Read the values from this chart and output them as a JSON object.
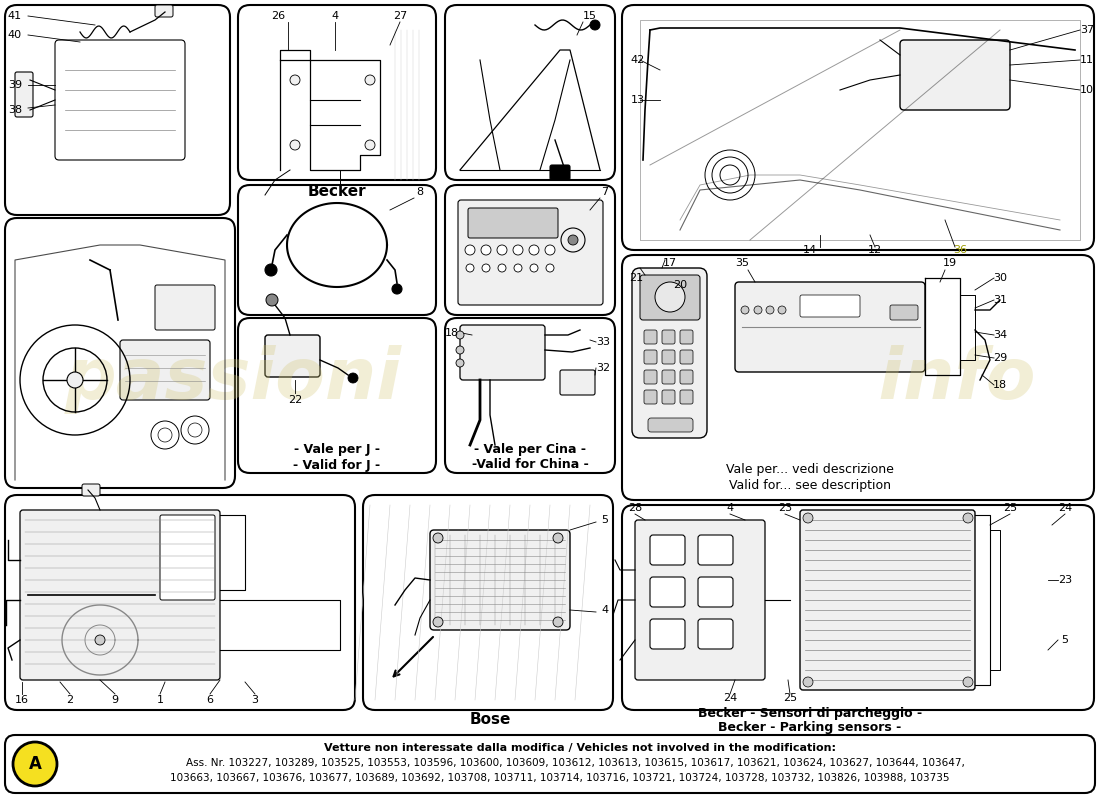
{
  "background_color": "#ffffff",
  "watermark_lines": [
    "passioni",
    "info"
  ],
  "watermark_color": "#d4c878",
  "watermark_alpha": 0.3,
  "note_circle_color": "#f5e020",
  "note_text": "A",
  "note_line1": "Vetture non interessate dalla modifica / Vehicles not involved in the modification:",
  "note_line2": "Ass. Nr. 103227, 103289, 103525, 103553, 103596, 103600, 103609, 103612, 103613, 103615, 103617, 103621, 103624, 103627, 103644, 103647,",
  "note_line3": "103663, 103667, 103676, 103677, 103689, 103692, 103708, 103711, 103714, 103716, 103721, 103724, 103728, 103732, 103826, 103988, 103735",
  "label_becker": "Becker",
  "label_bose": "Bose",
  "label_vale_j_1": "- Vale per J -",
  "label_vale_j_2": "- Valid for J -",
  "label_vale_cina_1": "- Vale per Cina -",
  "label_vale_cina_2": "-Valid for China -",
  "label_vale_desc_1": "Vale per... vedi descrizione",
  "label_vale_desc_2": "Valid for... see description",
  "label_becker_parking_1": "Becker - Sensori di parcheggio -",
  "label_becker_parking_2": "Becker - Parking sensors -",
  "gray_bg": "#e8e8e8",
  "light_gray": "#f0f0f0",
  "mid_gray": "#cccccc",
  "dark_gray": "#888888"
}
